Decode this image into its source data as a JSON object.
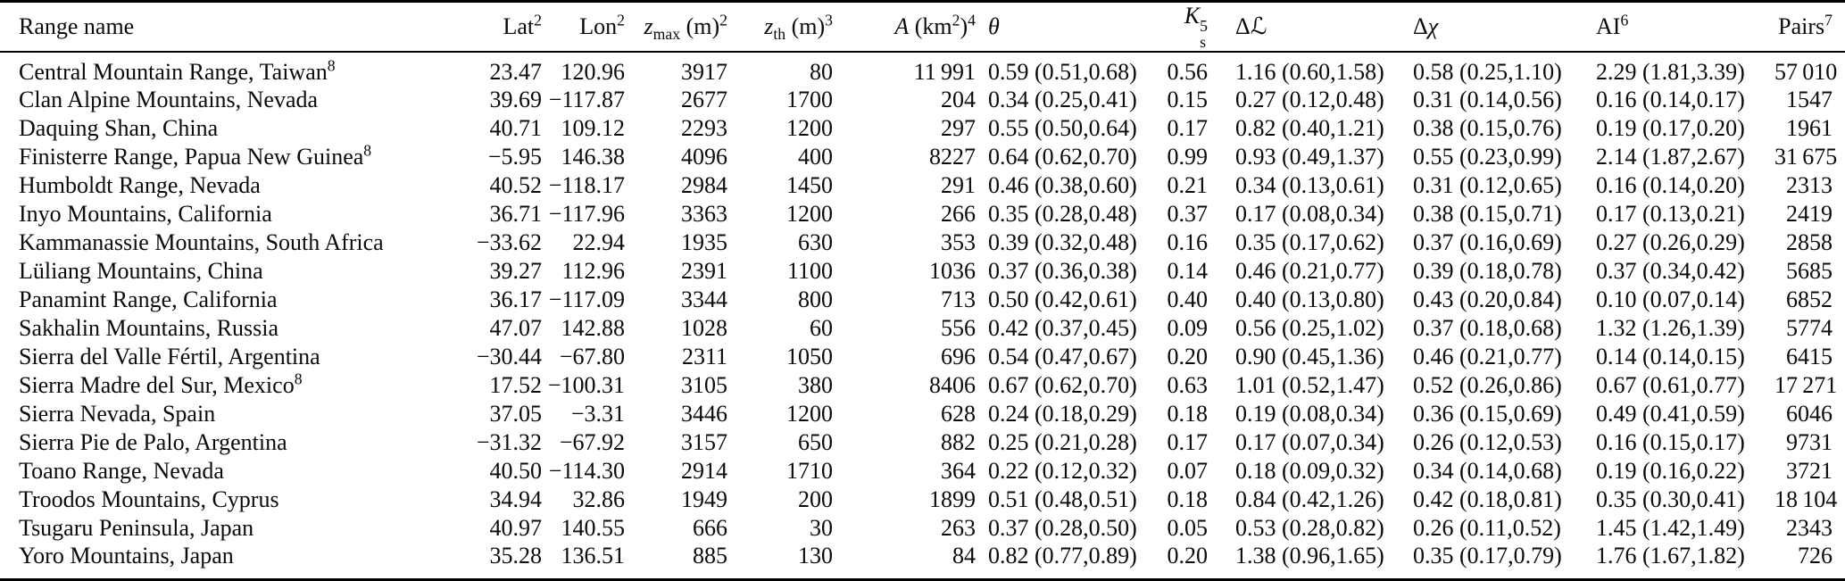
{
  "page": {
    "background": "#ffffff",
    "text_color": "#0a0a0a",
    "rule_color": "#000000"
  },
  "table": {
    "columns": [
      {
        "name": "range-name",
        "label": "Range name"
      },
      {
        "name": "lat",
        "label": "Lat<sup>2</sup>"
      },
      {
        "name": "lon",
        "label": "Lon<sup>2</sup>"
      },
      {
        "name": "z-max",
        "label": "<i>z</i><sub>max</sub> (m)<sup>2</sup>"
      },
      {
        "name": "z-th",
        "label": "<i>z</i><sub>th</sub> (m)<sup>3</sup>"
      },
      {
        "name": "area",
        "label": "<i>A</i> (km<sup>2</sup>)<sup>4</sup>"
      },
      {
        "name": "theta",
        "label": "<i>θ</i>"
      },
      {
        "name": "ks",
        "label": "<i>K</i><span class='supsub'><span>5</span><span>s</span></span>"
      },
      {
        "name": "delta-l",
        "label": "Δ<span class='scrL'>ℒ</span>"
      },
      {
        "name": "delta-chi",
        "label": "Δ<i>χ</i>"
      },
      {
        "name": "ai",
        "label": "AI<sup>6</sup>"
      },
      {
        "name": "pairs",
        "label": "Pairs<sup>7</sup>"
      }
    ],
    "rows": [
      [
        "Central Mountain Range, Taiwan<sup>8</sup>",
        "23.47",
        "120.96",
        "3917",
        "80",
        "11 991",
        "0.59 (0.51,0.68)",
        "0.56",
        "1.16 (0.60,1.58)",
        "0.58 (0.25,1.10)",
        "2.29 (1.81,3.39)",
        "57 010"
      ],
      [
        "Clan Alpine Mountains, Nevada",
        "39.69",
        "−117.87",
        "2677",
        "1700",
        "204",
        "0.34 (0.25,0.41)",
        "0.15",
        "0.27 (0.12,0.48)",
        "0.31 (0.14,0.56)",
        "0.16 (0.14,0.17)",
        "1547"
      ],
      [
        "Daquing Shan, China",
        "40.71",
        "109.12",
        "2293",
        "1200",
        "297",
        "0.55 (0.50,0.64)",
        "0.17",
        "0.82 (0.40,1.21)",
        "0.38 (0.15,0.76)",
        "0.19 (0.17,0.20)",
        "1961"
      ],
      [
        "Finisterre Range, Papua New Guinea<sup>8</sup>",
        "−5.95",
        "146.38",
        "4096",
        "400",
        "8227",
        "0.64 (0.62,0.70)",
        "0.99",
        "0.93 (0.49,1.37)",
        "0.55 (0.23,0.99)",
        "2.14 (1.87,2.67)",
        "31 675"
      ],
      [
        "Humboldt Range, Nevada",
        "40.52",
        "−118.17",
        "2984",
        "1450",
        "291",
        "0.46 (0.38,0.60)",
        "0.21",
        "0.34 (0.13,0.61)",
        "0.31 (0.12,0.65)",
        "0.16 (0.14,0.20)",
        "2313"
      ],
      [
        "Inyo Mountains, California",
        "36.71",
        "−117.96",
        "3363",
        "1200",
        "266",
        "0.35 (0.28,0.48)",
        "0.37",
        "0.17 (0.08,0.34)",
        "0.38 (0.15,0.71)",
        "0.17 (0.13,0.21)",
        "2419"
      ],
      [
        "Kammanassie Mountains, South Africa",
        "−33.62",
        "22.94",
        "1935",
        "630",
        "353",
        "0.39 (0.32,0.48)",
        "0.16",
        "0.35 (0.17,0.62)",
        "0.37 (0.16,0.69)",
        "0.27 (0.26,0.29)",
        "2858"
      ],
      [
        "Lüliang Mountains, China",
        "39.27",
        "112.96",
        "2391",
        "1100",
        "1036",
        "0.37 (0.36,0.38)",
        "0.14",
        "0.46 (0.21,0.77)",
        "0.39 (0.18,0.78)",
        "0.37 (0.34,0.42)",
        "5685"
      ],
      [
        "Panamint Range, California",
        "36.17",
        "−117.09",
        "3344",
        "800",
        "713",
        "0.50 (0.42,0.61)",
        "0.40",
        "0.40 (0.13,0.80)",
        "0.43 (0.20,0.84)",
        "0.10 (0.07,0.14)",
        "6852"
      ],
      [
        "Sakhalin Mountains, Russia",
        "47.07",
        "142.88",
        "1028",
        "60",
        "556",
        "0.42 (0.37,0.45)",
        "0.09",
        "0.56 (0.25,1.02)",
        "0.37 (0.18,0.68)",
        "1.32 (1.26,1.39)",
        "5774"
      ],
      [
        "Sierra del Valle Fértil, Argentina",
        "−30.44",
        "−67.80",
        "2311",
        "1050",
        "696",
        "0.54 (0.47,0.67)",
        "0.20",
        "0.90 (0.45,1.36)",
        "0.46 (0.21,0.77)",
        "0.14 (0.14,0.15)",
        "6415"
      ],
      [
        "Sierra Madre del Sur, Mexico<sup>8</sup>",
        "17.52",
        "−100.31",
        "3105",
        "380",
        "8406",
        "0.67 (0.62,0.70)",
        "0.63",
        "1.01 (0.52,1.47)",
        "0.52 (0.26,0.86)",
        "0.67 (0.61,0.77)",
        "17 271"
      ],
      [
        "Sierra Nevada, Spain",
        "37.05",
        "−3.31",
        "3446",
        "1200",
        "628",
        "0.24 (0.18,0.29)",
        "0.18",
        "0.19 (0.08,0.34)",
        "0.36 (0.15,0.69)",
        "0.49 (0.41,0.59)",
        "6046"
      ],
      [
        "Sierra Pie de Palo, Argentina",
        "−31.32",
        "−67.92",
        "3157",
        "650",
        "882",
        "0.25 (0.21,0.28)",
        "0.17",
        "0.17 (0.07,0.34)",
        "0.26 (0.12,0.53)",
        "0.16 (0.15,0.17)",
        "9731"
      ],
      [
        "Toano Range, Nevada",
        "40.50",
        "−114.30",
        "2914",
        "1710",
        "364",
        "0.22 (0.12,0.32)",
        "0.07",
        "0.18 (0.09,0.32)",
        "0.34 (0.14,0.68)",
        "0.19 (0.16,0.22)",
        "3721"
      ],
      [
        "Troodos Mountains, Cyprus",
        "34.94",
        "32.86",
        "1949",
        "200",
        "1899",
        "0.51 (0.48,0.51)",
        "0.18",
        "0.84 (0.42,1.26)",
        "0.42 (0.18,0.81)",
        "0.35 (0.30,0.41)",
        "18 104"
      ],
      [
        "Tsugaru Peninsula, Japan",
        "40.97",
        "140.55",
        "666",
        "30",
        "263",
        "0.37 (0.28,0.50)",
        "0.05",
        "0.53 (0.28,0.82)",
        "0.26 (0.11,0.52)",
        "1.45 (1.42,1.49)",
        "2343"
      ],
      [
        "Yoro Mountains, Japan",
        "35.28",
        "136.51",
        "885",
        "130",
        "84",
        "0.82 (0.77,0.89)",
        "0.20",
        "1.38 (0.96,1.65)",
        "0.35 (0.17,0.79)",
        "1.76 (1.67,1.82)",
        "726"
      ]
    ]
  }
}
